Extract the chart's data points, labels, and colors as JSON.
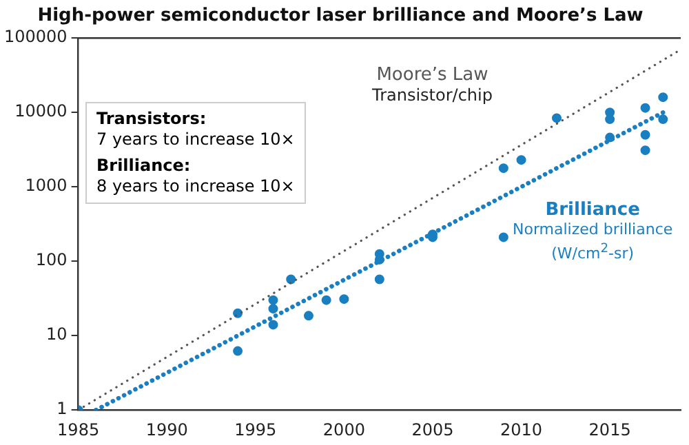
{
  "chart_data": {
    "type": "scatter",
    "title": "High-power semiconductor laser brilliance and Moore’s Law",
    "annotations": [
      "Transistor/chip",
      "Normalized brilliance (W/cm$^{2}$-sr)",
      "Transistors:",
      "7 years to increase 10×",
      "Brilliance:",
      "8 years to increase 10×"
    ],
    "series": [
      {
        "name": "Moore’s Law",
        "type": "line",
        "marker": "none",
        "color": "#555555",
        "line_style": "dotted",
        "x": [
          1985,
          2019
        ],
        "values": [
          1,
          70000
        ]
      },
      {
        "name": "Brilliance",
        "type": "line",
        "marker": "none",
        "color": "#1a7fc1",
        "line_style": "dotted",
        "x": [
          1986,
          2018
        ],
        "values": [
          1,
          10000
        ]
      },
      {
        "color": "#1a7fc1",
        "x": [
          1985,
          1994,
          1994,
          1996,
          1996,
          1996,
          1997,
          1998,
          1999,
          2000,
          2002,
          2002,
          2002,
          2005,
          2005,
          2009,
          2009,
          2010,
          2012,
          2015,
          2015,
          2015,
          2017,
          2017,
          2017,
          2018,
          2018
        ],
        "values": [
          1,
          20,
          6.2,
          30,
          23,
          14,
          57,
          18.5,
          30,
          31,
          125,
          105,
          57,
          230,
          210,
          210,
          1780,
          2300,
          8400,
          10000,
          8100,
          4600,
          11500,
          5000,
          3100,
          16000,
          8100
        ]
      }
    ],
    "xlim": [
      1985,
      2019
    ],
    "xticks": [
      1985,
      1990,
      1995,
      2000,
      2005,
      2010,
      2015
    ],
    "ylim": [
      1,
      100000
    ],
    "yticks": [
      1,
      10,
      100,
      1000,
      10000,
      100000
    ],
    "log": "y",
    "grid": false,
    "legend": false,
    "marker": "circle"
  }
}
